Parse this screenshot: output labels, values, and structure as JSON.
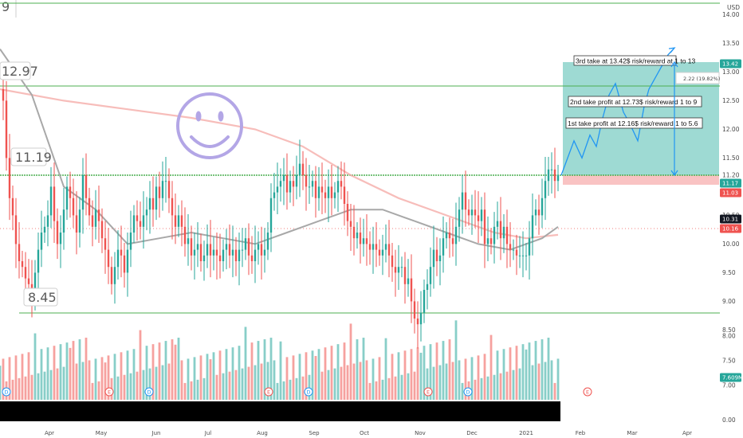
{
  "chart_data": {
    "type": "candlestick",
    "currency": "USD",
    "y_ticks": [
      14.0,
      13.5,
      13.0,
      12.5,
      12.0,
      11.5,
      11.2,
      10.5,
      10.0,
      9.5,
      9.0,
      8.5
    ],
    "y_tick_labels": [
      "14.00",
      "13.50",
      "13.00",
      "12.50",
      "12.00",
      "11.50",
      "11.20",
      "10.50",
      "10.00",
      "9.50",
      "9.00",
      "8.50"
    ],
    "ylim": [
      8.0,
      14.5
    ],
    "vol_ticks": [
      8.0,
      7.5,
      7.0,
      0.0
    ],
    "vol_tick_labels": [
      "8.00",
      "7.50",
      "7.00",
      "0.00"
    ],
    "months": [
      "Apr",
      "May",
      "Jun",
      "Jul",
      "Aug",
      "Sep",
      "Oct",
      "Nov",
      "Dec",
      "2021",
      "Feb",
      "Mar",
      "Apr"
    ],
    "horizontal_levels": [
      14.2,
      12.97,
      11.19,
      8.45
    ],
    "level_labels": [
      "12.97",
      "11.19",
      "8.45"
    ],
    "partial_top_label": "9",
    "price_series": [
      [
        0,
        12.7
      ],
      [
        4,
        12.5
      ],
      [
        8,
        11.5
      ],
      [
        12,
        10.8
      ],
      [
        16,
        10.5
      ],
      [
        20,
        10.0
      ],
      [
        24,
        9.7
      ],
      [
        28,
        9.6
      ],
      [
        32,
        9.4
      ],
      [
        36,
        9.3
      ],
      [
        40,
        9.1
      ],
      [
        44,
        9.5
      ],
      [
        48,
        9.9
      ],
      [
        52,
        10.2
      ],
      [
        56,
        10.3
      ],
      [
        60,
        10.5
      ],
      [
        64,
        11.0
      ],
      [
        68,
        10.4
      ],
      [
        72,
        10.0
      ],
      [
        76,
        10.2
      ],
      [
        80,
        10.6
      ],
      [
        84,
        11.0
      ],
      [
        88,
        10.8
      ],
      [
        92,
        10.5
      ],
      [
        96,
        10.2
      ],
      [
        100,
        10.6
      ],
      [
        104,
        11.2
      ],
      [
        108,
        10.8
      ],
      [
        112,
        10.5
      ],
      [
        116,
        10.3
      ],
      [
        120,
        10.6
      ],
      [
        124,
        10.4
      ],
      [
        128,
        10.1
      ],
      [
        132,
        9.9
      ],
      [
        136,
        9.6
      ],
      [
        140,
        9.3
      ],
      [
        144,
        9.6
      ],
      [
        148,
        9.9
      ],
      [
        152,
        9.8
      ],
      [
        156,
        9.5
      ],
      [
        160,
        9.9
      ],
      [
        164,
        10.2
      ],
      [
        168,
        10.5
      ],
      [
        172,
        10.4
      ],
      [
        176,
        10.3
      ],
      [
        180,
        10.5
      ],
      [
        184,
        10.6
      ],
      [
        188,
        10.8
      ],
      [
        192,
        10.6
      ],
      [
        196,
        11.0
      ],
      [
        200,
        10.8
      ],
      [
        204,
        11.1
      ],
      [
        208,
        11.1
      ],
      [
        212,
        10.8
      ],
      [
        216,
        10.5
      ],
      [
        220,
        10.3
      ],
      [
        224,
        10.5
      ],
      [
        228,
        10.3
      ],
      [
        232,
        10.0
      ],
      [
        236,
        10.1
      ],
      [
        240,
        9.8
      ],
      [
        244,
        9.9
      ],
      [
        248,
        10.0
      ],
      [
        252,
        9.7
      ],
      [
        256,
        9.8
      ],
      [
        260,
        10.0
      ],
      [
        264,
        9.8
      ],
      [
        268,
        9.9
      ],
      [
        272,
        9.8
      ],
      [
        276,
        9.7
      ],
      [
        280,
        9.9
      ],
      [
        284,
        10.0
      ],
      [
        288,
        9.8
      ],
      [
        292,
        9.9
      ],
      [
        296,
        9.7
      ],
      [
        300,
        9.9
      ],
      [
        304,
        9.9
      ],
      [
        308,
        10.1
      ],
      [
        312,
        9.8
      ],
      [
        316,
        9.7
      ],
      [
        320,
        9.9
      ],
      [
        324,
        10.0
      ],
      [
        328,
        9.8
      ],
      [
        332,
        9.9
      ],
      [
        336,
        10.2
      ],
      [
        340,
        10.8
      ],
      [
        344,
        10.9
      ],
      [
        348,
        11.0
      ],
      [
        352,
        11.1
      ],
      [
        356,
        11.2
      ],
      [
        360,
        10.9
      ],
      [
        364,
        11.1
      ],
      [
        368,
        11.0
      ],
      [
        372,
        11.2
      ],
      [
        376,
        11.4
      ],
      [
        380,
        11.2
      ],
      [
        384,
        11.0
      ],
      [
        388,
        11.0
      ],
      [
        392,
        11.1
      ],
      [
        396,
        10.8
      ],
      [
        400,
        11.0
      ],
      [
        404,
        10.9
      ],
      [
        408,
        10.8
      ],
      [
        412,
        11.0
      ],
      [
        416,
        10.8
      ],
      [
        420,
        10.9
      ],
      [
        424,
        11.1
      ],
      [
        428,
        11.0
      ],
      [
        432,
        10.7
      ],
      [
        436,
        10.4
      ],
      [
        440,
        10.3
      ],
      [
        444,
        10.1
      ],
      [
        448,
        10.2
      ],
      [
        452,
        10.0
      ],
      [
        456,
        10.1
      ],
      [
        460,
        10.0
      ],
      [
        464,
        9.9
      ],
      [
        468,
        10.0
      ],
      [
        472,
        9.9
      ],
      [
        476,
        9.8
      ],
      [
        480,
        9.9
      ],
      [
        484,
        10.0
      ],
      [
        488,
        9.8
      ],
      [
        492,
        9.6
      ],
      [
        496,
        9.5
      ],
      [
        500,
        9.6
      ],
      [
        504,
        9.6
      ],
      [
        508,
        9.3
      ],
      [
        512,
        9.4
      ],
      [
        516,
        9.0
      ],
      [
        520,
        8.7
      ],
      [
        524,
        8.6
      ],
      [
        528,
        8.8
      ],
      [
        532,
        9.2
      ],
      [
        536,
        9.3
      ],
      [
        540,
        9.6
      ],
      [
        544,
        9.9
      ],
      [
        548,
        9.7
      ],
      [
        552,
        9.8
      ],
      [
        556,
        10.1
      ],
      [
        560,
        10.2
      ],
      [
        564,
        10.1
      ],
      [
        568,
        10.0
      ],
      [
        572,
        10.3
      ],
      [
        576,
        10.6
      ],
      [
        580,
        10.9
      ],
      [
        584,
        10.6
      ],
      [
        588,
        10.5
      ],
      [
        592,
        10.6
      ],
      [
        596,
        10.5
      ],
      [
        600,
        10.4
      ],
      [
        604,
        10.6
      ],
      [
        608,
        10.0
      ],
      [
        612,
        10.1
      ],
      [
        616,
        10.0
      ],
      [
        620,
        10.3
      ],
      [
        624,
        10.4
      ],
      [
        628,
        10.1
      ],
      [
        632,
        10.3
      ],
      [
        636,
        10.0
      ],
      [
        640,
        9.9
      ],
      [
        644,
        9.9
      ],
      [
        648,
        9.8
      ],
      [
        652,
        9.8
      ],
      [
        656,
        9.8
      ],
      [
        660,
        9.8
      ],
      [
        664,
        10.1
      ],
      [
        668,
        10.5
      ],
      [
        672,
        10.6
      ],
      [
        676,
        10.5
      ],
      [
        680,
        10.8
      ],
      [
        684,
        11.1
      ],
      [
        688,
        11.3
      ],
      [
        692,
        11.3
      ],
      [
        696,
        11.1
      ],
      [
        700,
        11.2
      ]
    ],
    "ma_gray": [
      [
        0,
        13.4
      ],
      [
        40,
        12.6
      ],
      [
        80,
        11.0
      ],
      [
        120,
        10.6
      ],
      [
        160,
        10.0
      ],
      [
        200,
        10.1
      ],
      [
        240,
        10.2
      ],
      [
        280,
        10.1
      ],
      [
        320,
        10.0
      ],
      [
        360,
        10.2
      ],
      [
        400,
        10.4
      ],
      [
        440,
        10.6
      ],
      [
        480,
        10.6
      ],
      [
        520,
        10.4
      ],
      [
        560,
        10.2
      ],
      [
        600,
        10.0
      ],
      [
        640,
        9.9
      ],
      [
        680,
        10.1
      ],
      [
        700,
        10.3
      ]
    ],
    "ma_red": [
      [
        0,
        12.7
      ],
      [
        80,
        12.5
      ],
      [
        160,
        12.35
      ],
      [
        240,
        12.2
      ],
      [
        320,
        12.0
      ],
      [
        380,
        11.7
      ],
      [
        440,
        11.2
      ],
      [
        500,
        10.8
      ],
      [
        560,
        10.5
      ],
      [
        620,
        10.2
      ],
      [
        660,
        10.1
      ],
      [
        700,
        10.16
      ]
    ],
    "projection": [
      [
        704,
        11.2
      ],
      [
        712,
        11.5
      ],
      [
        720,
        11.8
      ],
      [
        730,
        11.5
      ],
      [
        740,
        11.9
      ],
      [
        748,
        11.7
      ],
      [
        756,
        12.2
      ],
      [
        764,
        12.6
      ],
      [
        772,
        12.8
      ],
      [
        782,
        12.3
      ],
      [
        790,
        12.1
      ],
      [
        800,
        11.8
      ],
      [
        808,
        12.4
      ],
      [
        814,
        12.7
      ],
      [
        822,
        12.9
      ],
      [
        830,
        13.1
      ],
      [
        838,
        13.3
      ],
      [
        846,
        13.42
      ]
    ],
    "annotations": [
      "3rd take at 13.42$ risk/reward at 1 to 13",
      "2nd take profit at 12.73$ risk/reward 1 to 9",
      "1st take profit at 12.16$ risk/reward 1 to 5.6"
    ],
    "measure_label": "2.22 (19.82%)",
    "price_tags": [
      {
        "value": "13.42",
        "color": "#26a69a"
      },
      {
        "value": "11.17",
        "color": "#26a69a"
      },
      {
        "value": "11.03",
        "color": "#ef5350"
      },
      {
        "value": "10.31",
        "color": "#131722"
      },
      {
        "value": "10.16",
        "color": "#ef5350"
      },
      {
        "value": "7.609M",
        "color": "#26a69a"
      }
    ],
    "event_markers": [
      {
        "x": 8,
        "label": "D"
      },
      {
        "x": 137,
        "label": "E"
      },
      {
        "x": 187,
        "label": "D"
      },
      {
        "x": 337,
        "label": "E"
      },
      {
        "x": 387,
        "label": "D"
      },
      {
        "x": 537,
        "label": "E"
      },
      {
        "x": 587,
        "label": "D"
      },
      {
        "x": 737,
        "label": "E"
      }
    ],
    "colors": {
      "up": "#26a69a",
      "down": "#ef5350",
      "level": "#4caf50",
      "target": "#7ecdc4",
      "stop": "#f8b4b4",
      "projection": "#2196f3",
      "smiley": "#b3a6e6"
    }
  }
}
